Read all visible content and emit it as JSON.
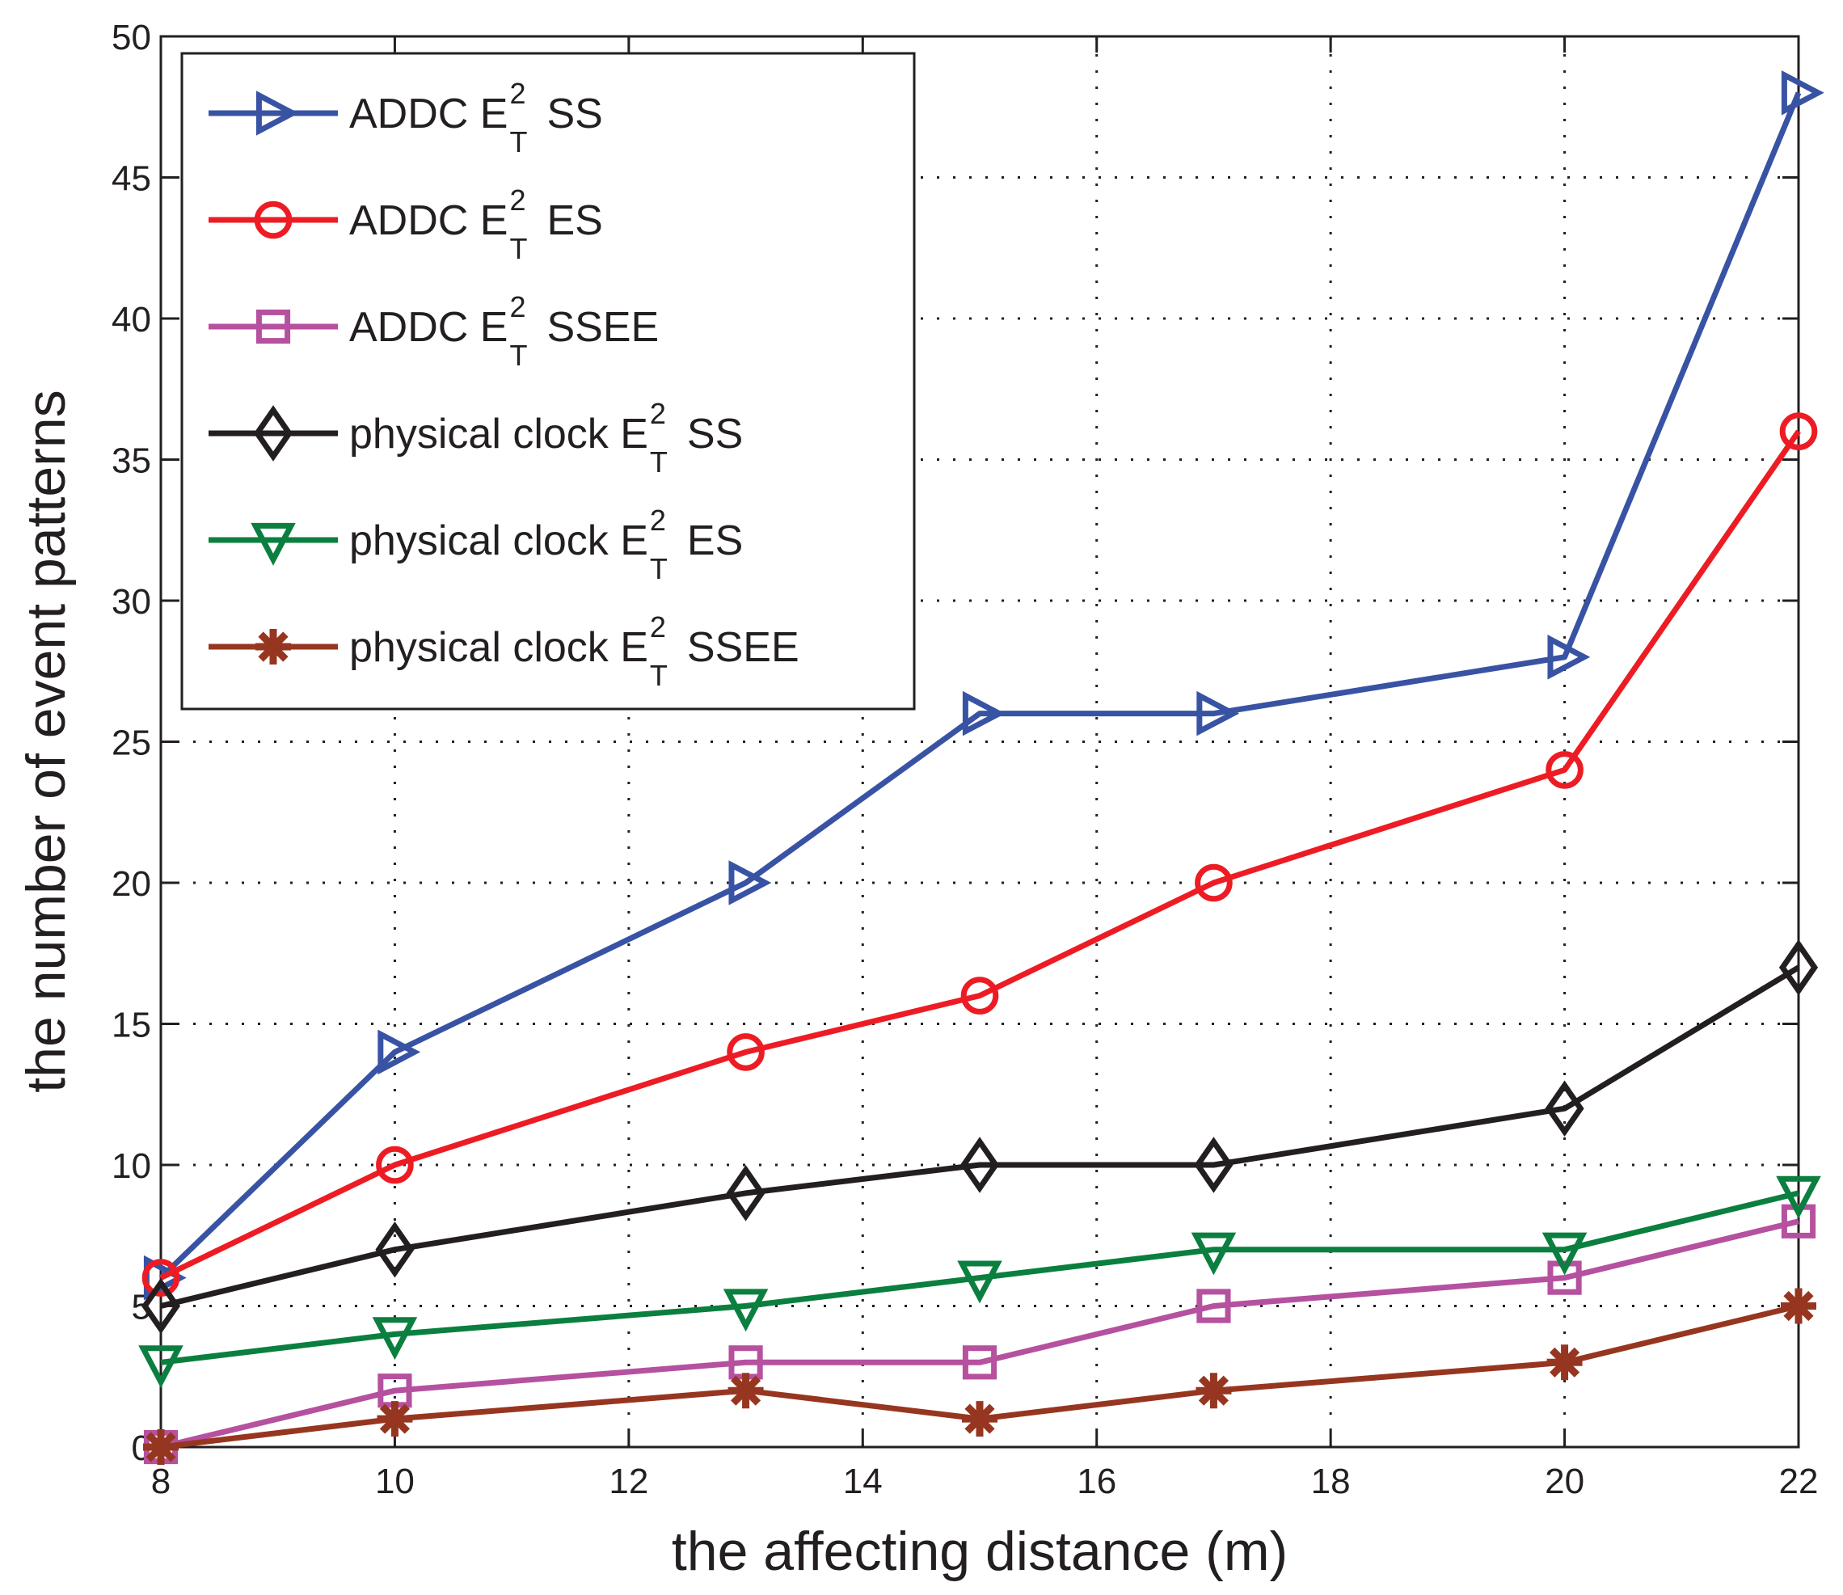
{
  "chart_data": {
    "type": "line",
    "title": "",
    "xlabel": "the affecting distance (m)",
    "ylabel": "the number of event patterns",
    "xlim": [
      8,
      22
    ],
    "ylim": [
      0,
      50
    ],
    "xticks": [
      8,
      10,
      12,
      14,
      16,
      18,
      20,
      22
    ],
    "yticks": [
      0,
      5,
      10,
      15,
      20,
      25,
      30,
      35,
      40,
      45,
      50
    ],
    "grid": true,
    "legend_position": "top-left",
    "x": [
      8,
      10,
      13,
      15,
      17,
      20,
      22
    ],
    "series": [
      {
        "name": "ADDC E_T^2 SS",
        "prefix": "ADDC E",
        "sup": "2",
        "sub": "T",
        "suffix": "SS",
        "marker": "triangle-right",
        "color": "#3953a4",
        "values": [
          6,
          14,
          20,
          26,
          26,
          28,
          48
        ]
      },
      {
        "name": "ADDC E_T^2 ES",
        "prefix": "ADDC E",
        "sup": "2",
        "sub": "T",
        "suffix": "ES",
        "marker": "circle",
        "color": "#ed1c24",
        "values": [
          6,
          10,
          14,
          16,
          20,
          24,
          36
        ]
      },
      {
        "name": "ADDC E_T^2 SSEE",
        "prefix": "ADDC E",
        "sup": "2",
        "sub": "T",
        "suffix": "SSEE",
        "marker": "square",
        "color": "#b5519f",
        "values": [
          0,
          2,
          3,
          3,
          5,
          6,
          8
        ]
      },
      {
        "name": "physical clock E_T^2 SS",
        "prefix": "physical clock E",
        "sup": "2",
        "sub": "T",
        "suffix": "SS",
        "marker": "diamond",
        "color": "#231f20",
        "values": [
          5,
          7,
          9,
          10,
          10,
          12,
          17
        ]
      },
      {
        "name": "physical clock E_T^2 ES",
        "prefix": "physical clock E",
        "sup": "2",
        "sub": "T",
        "suffix": "ES",
        "marker": "triangle-down",
        "color": "#0b7f3f",
        "values": [
          3,
          4,
          5,
          6,
          7,
          7,
          9
        ]
      },
      {
        "name": "physical clock E_T^2 SSEE",
        "prefix": "physical clock E",
        "sup": "2",
        "sub": "T",
        "suffix": "SSEE",
        "marker": "asterisk",
        "color": "#973620",
        "values": [
          0,
          1,
          2,
          1,
          2,
          3,
          5
        ]
      }
    ]
  }
}
